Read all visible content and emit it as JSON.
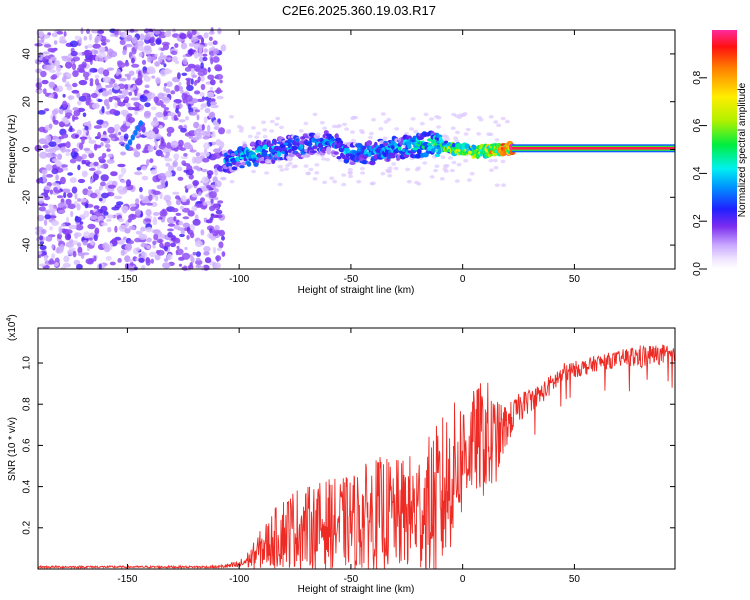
{
  "title": "C2E6.2025.360.19.03.R17",
  "colors": {
    "axis": "#000000",
    "snr_line": "#ee2a24",
    "noise_purple": "#7a2cf0",
    "background": "#ffffff"
  },
  "chart_data": [
    {
      "type": "heatmap",
      "xlabel": "Height of straight line (km)",
      "ylabel": "Frequency (Hz)",
      "xlim": [
        -190,
        95
      ],
      "ylim": [
        -50,
        50
      ],
      "xticks": [
        -150,
        -100,
        -50,
        0,
        50
      ],
      "xtick_labels": [
        "-150",
        "-100",
        "-50",
        "0",
        "50"
      ],
      "yticks": [
        -40,
        -20,
        0,
        20,
        40
      ],
      "ytick_labels": [
        "-40",
        "-20",
        "0",
        "20",
        "40"
      ],
      "noise_region_x": [
        -190,
        -107
      ],
      "ridge": {
        "points": [
          {
            "x": -107,
            "f": -5.5,
            "amp": 0.35
          },
          {
            "x": -95,
            "f": -2.0,
            "amp": 0.45
          },
          {
            "x": -80,
            "f": 0.5,
            "amp": 0.4
          },
          {
            "x": -60,
            "f": 3.0,
            "amp": 0.35
          },
          {
            "x": -50,
            "f": -2.0,
            "amp": 0.4
          },
          {
            "x": -40,
            "f": -1.0,
            "amp": 0.4
          },
          {
            "x": -25,
            "f": 1.0,
            "amp": 0.45
          },
          {
            "x": -15,
            "f": 2.5,
            "amp": 0.5
          },
          {
            "x": -5,
            "f": 0.5,
            "amp": 0.6
          },
          {
            "x": 5,
            "f": -1.0,
            "amp": 0.7
          },
          {
            "x": 15,
            "f": 0.0,
            "amp": 0.8
          },
          {
            "x": 22,
            "f": 0.5,
            "amp": 0.95
          },
          {
            "x": 95,
            "f": 0.5,
            "amp": 0.98
          }
        ],
        "steady_start_x": 22,
        "steady_frequency": 0.5
      },
      "colorbar": {
        "label": "Normalized spectral amplitude",
        "range": [
          0,
          1
        ],
        "ticks": [
          0.0,
          0.2,
          0.4,
          0.6,
          0.8
        ],
        "tick_labels": [
          "0.0",
          "0.2",
          "0.4",
          "0.6",
          "0.8"
        ]
      }
    },
    {
      "type": "line",
      "xlabel": "Height of straight line (km)",
      "ylabel": "SNR (10 * v/v)",
      "scale_label": "(x10",
      "scale_exp": "4",
      "scale_close": ")",
      "xlim": [
        -190,
        95
      ],
      "ylim": [
        0,
        1.17
      ],
      "xticks": [
        -150,
        -100,
        -50,
        0,
        50
      ],
      "xtick_labels": [
        "-150",
        "-100",
        "-50",
        "0",
        "50"
      ],
      "yticks": [
        0.2,
        0.4,
        0.6,
        0.8,
        1.0
      ],
      "ytick_labels": [
        "0.2",
        "0.4",
        "0.6",
        "0.8",
        "1.0"
      ],
      "series": [
        {
          "name": "SNR",
          "x": [
            -190,
            -150,
            -110,
            -100,
            -95,
            -90,
            -85,
            -80,
            -75,
            -70,
            -65,
            -60,
            -55,
            -50,
            -45,
            -40,
            -35,
            -30,
            -25,
            -20,
            -15,
            -10,
            -8,
            -5,
            0,
            5,
            10,
            12,
            15,
            20,
            25,
            30,
            35,
            40,
            45,
            50,
            55,
            60,
            65,
            70,
            75,
            80,
            85,
            90,
            95
          ],
          "mean": [
            0.01,
            0.01,
            0.01,
            0.02,
            0.05,
            0.1,
            0.14,
            0.18,
            0.2,
            0.2,
            0.21,
            0.22,
            0.22,
            0.23,
            0.24,
            0.26,
            0.27,
            0.26,
            0.27,
            0.28,
            0.3,
            0.33,
            0.38,
            0.45,
            0.55,
            0.62,
            0.64,
            0.6,
            0.62,
            0.7,
            0.78,
            0.82,
            0.85,
            0.9,
            0.95,
            0.97,
            0.98,
            1.0,
            1.01,
            1.02,
            1.03,
            1.03,
            1.04,
            1.04,
            1.03
          ],
          "amplitude": [
            0.005,
            0.005,
            0.005,
            0.02,
            0.05,
            0.1,
            0.14,
            0.18,
            0.2,
            0.2,
            0.21,
            0.22,
            0.22,
            0.23,
            0.26,
            0.28,
            0.28,
            0.27,
            0.28,
            0.3,
            0.35,
            0.4,
            0.4,
            0.35,
            0.3,
            0.25,
            0.3,
            0.3,
            0.2,
            0.1,
            0.07,
            0.06,
            0.05,
            0.05,
            0.05,
            0.04,
            0.04,
            0.04,
            0.04,
            0.04,
            0.05,
            0.06,
            0.05,
            0.05,
            0.04
          ]
        }
      ]
    }
  ]
}
